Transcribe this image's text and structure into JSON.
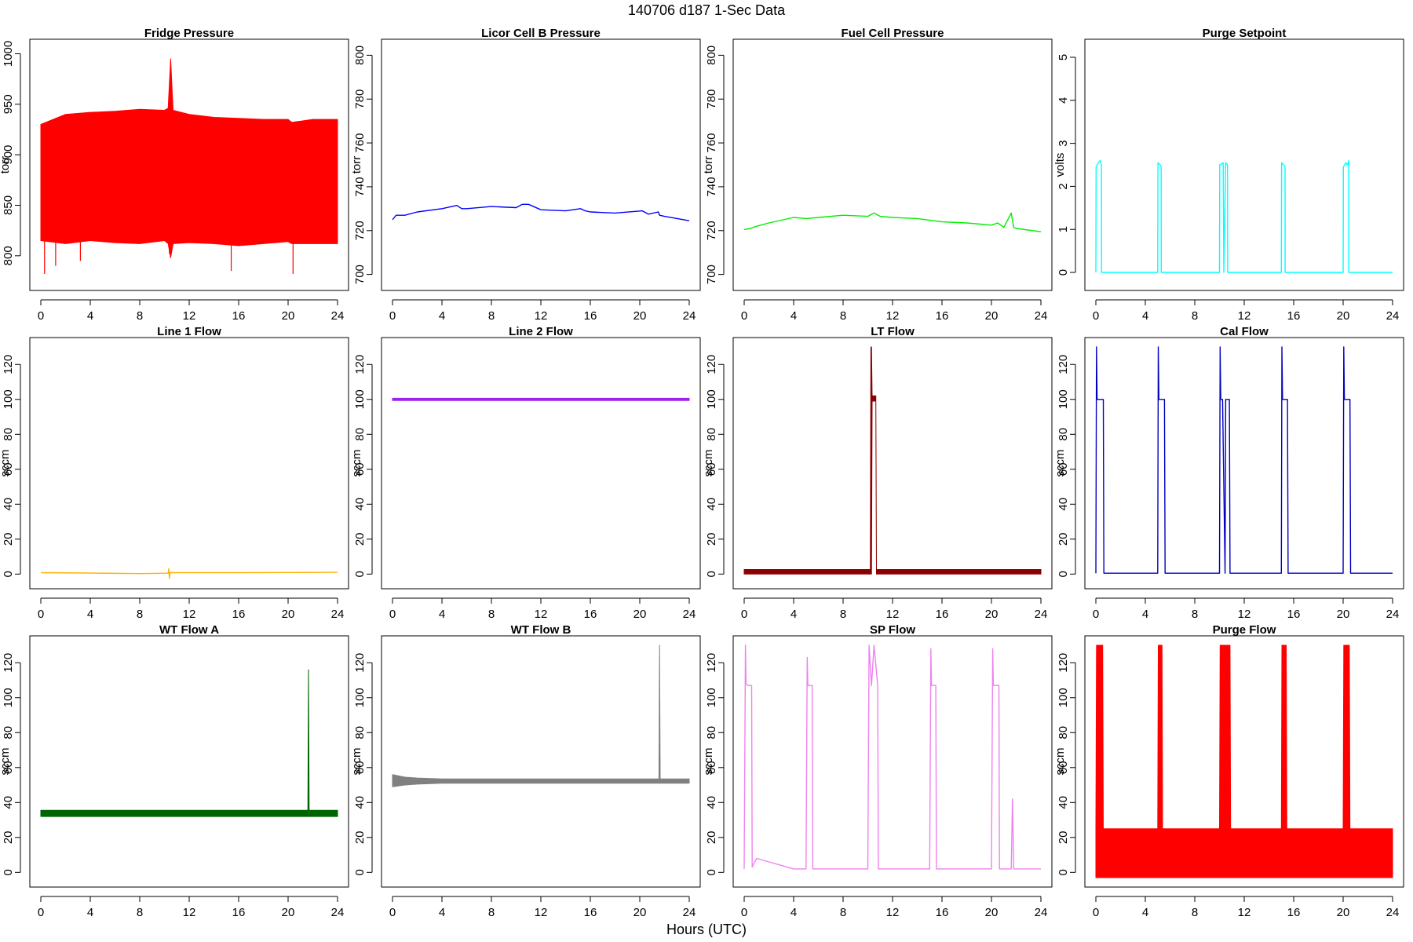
{
  "figure": {
    "title": "140706   d187   1-Sec Data",
    "xlabel": "Hours (UTC)"
  },
  "chart_data": [
    {
      "type": "line",
      "title": "Fridge Pressure",
      "ylabel": "torr",
      "color": "#ff0000",
      "xlim": [
        0,
        24
      ],
      "ylim": [
        775,
        1005
      ],
      "yticks": [
        800,
        850,
        900,
        950,
        1000
      ],
      "xticks": [
        0,
        4,
        8,
        12,
        16,
        20,
        24
      ],
      "x": [
        0,
        2,
        4,
        6,
        8,
        10,
        10.3,
        10.5,
        10.7,
        12,
        14,
        16,
        18,
        20,
        20.3,
        22,
        24
      ],
      "lower": [
        815,
        812,
        815,
        813,
        812,
        815,
        812,
        798,
        812,
        813,
        812,
        810,
        812,
        814,
        812,
        812,
        812
      ],
      "upper": [
        930,
        940,
        942,
        943,
        945,
        944,
        946,
        995,
        944,
        940,
        937,
        936,
        935,
        935,
        932,
        935,
        935
      ],
      "spikes_low": [
        [
          0.3,
          782
        ],
        [
          1.2,
          790
        ],
        [
          3.2,
          795
        ],
        [
          10.4,
          802
        ],
        [
          15.4,
          785
        ],
        [
          20.4,
          782
        ]
      ]
    },
    {
      "type": "line",
      "title": "Licor Cell B Pressure",
      "ylabel": "torr",
      "color": "#0000ff",
      "xlim": [
        0,
        24
      ],
      "ylim": [
        697,
        803
      ],
      "yticks": [
        700,
        720,
        740,
        760,
        780,
        800
      ],
      "xticks": [
        0,
        4,
        8,
        12,
        16,
        20,
        24
      ],
      "x": [
        0,
        0.3,
        1,
        2,
        4,
        5.2,
        5.6,
        6,
        8,
        10,
        10.5,
        11,
        12,
        14,
        15.2,
        15.6,
        16,
        18,
        20.2,
        20.7,
        21.5,
        21.6,
        22,
        24
      ],
      "values": [
        725,
        727,
        727,
        728.5,
        730,
        731.5,
        730,
        730,
        731,
        730.5,
        732,
        732,
        729.5,
        729,
        730,
        729,
        728.5,
        728,
        729,
        727.5,
        728.5,
        727,
        726.5,
        724.5
      ]
    },
    {
      "type": "line",
      "title": "Fuel Cell Pressure",
      "ylabel": "torr",
      "color": "#00ee00",
      "xlim": [
        0,
        24
      ],
      "ylim": [
        697,
        803
      ],
      "yticks": [
        700,
        720,
        740,
        760,
        780,
        800
      ],
      "xticks": [
        0,
        4,
        8,
        12,
        16,
        20,
        24
      ],
      "x": [
        0,
        0.5,
        1,
        2,
        4,
        5,
        6,
        8,
        10,
        10.5,
        11,
        12,
        14,
        16,
        18,
        20,
        20.5,
        21,
        21.6,
        21.8,
        22,
        24
      ],
      "values": [
        720.5,
        721,
        722,
        723.5,
        726,
        725.5,
        726,
        727,
        726.5,
        728,
        726.5,
        726,
        725.5,
        724,
        723.5,
        722.5,
        723.5,
        721.5,
        728,
        721.5,
        721,
        719.5
      ]
    },
    {
      "type": "line",
      "title": "Purge Setpoint",
      "ylabel": "volts",
      "color": "#00ffff",
      "xlim": [
        0,
        24
      ],
      "ylim": [
        -0.2,
        5.2
      ],
      "yticks": [
        0,
        1,
        2,
        3,
        4,
        5
      ],
      "xticks": [
        0,
        4,
        8,
        12,
        16,
        20,
        24
      ],
      "x": [
        0,
        0.02,
        0.1,
        0.2,
        0.35,
        0.45,
        0.46,
        5.0,
        5.02,
        5.2,
        5.28,
        5.29,
        10.0,
        10.02,
        10.3,
        10.35,
        10.5,
        10.65,
        10.66,
        15.0,
        15.02,
        15.2,
        15.3,
        15.31,
        20.0,
        20.02,
        20.2,
        20.35,
        20.45,
        20.46,
        24
      ],
      "values": [
        0,
        2.45,
        2.5,
        2.55,
        2.6,
        2.5,
        0,
        0,
        2.55,
        2.5,
        2.45,
        0,
        0,
        2.5,
        2.55,
        0,
        2.55,
        2.5,
        0,
        0,
        2.55,
        2.5,
        2.45,
        0,
        0,
        2.45,
        2.55,
        2.5,
        2.6,
        0,
        0
      ]
    },
    {
      "type": "line",
      "title": "Line 1 Flow",
      "ylabel": "sccm",
      "color": "#ffb200",
      "xlim": [
        0,
        24
      ],
      "ylim": [
        -3,
        130
      ],
      "yticks": [
        0,
        20,
        40,
        60,
        80,
        100,
        120
      ],
      "xticks": [
        0,
        4,
        8,
        12,
        16,
        20,
        24
      ],
      "x": [
        0,
        4,
        8,
        10.3,
        10.35,
        10.4,
        10.45,
        12,
        16,
        20,
        24
      ],
      "values": [
        0.8,
        0.6,
        0.3,
        0.5,
        3,
        -2.5,
        0.8,
        0.8,
        0.8,
        0.9,
        1.0
      ]
    },
    {
      "type": "line",
      "title": "Line 2 Flow",
      "ylabel": "sccm",
      "color": "#a020f0",
      "xlim": [
        0,
        24
      ],
      "ylim": [
        -3,
        130
      ],
      "yticks": [
        0,
        20,
        40,
        60,
        80,
        100,
        120
      ],
      "xticks": [
        0,
        4,
        8,
        12,
        16,
        20,
        24
      ],
      "x": [
        0,
        24
      ],
      "lower": [
        99.3,
        99.3
      ],
      "upper": [
        100.6,
        100.6
      ]
    },
    {
      "type": "line",
      "title": "LT Flow",
      "ylabel": "sccm",
      "color": "#8b0000",
      "xlim": [
        0,
        24
      ],
      "ylim": [
        -3,
        130
      ],
      "yticks": [
        0,
        20,
        40,
        60,
        80,
        100,
        120
      ],
      "xticks": [
        0,
        4,
        8,
        12,
        16,
        20,
        24
      ],
      "x": [
        0,
        10.2,
        10.25,
        10.3,
        10.35,
        10.65,
        10.7,
        10.75,
        24
      ],
      "lower": [
        0,
        0,
        0,
        0,
        99,
        99,
        0,
        0,
        0
      ],
      "upper": [
        2.6,
        2.6,
        130,
        130,
        102,
        102,
        2.6,
        2.6,
        2.6
      ]
    },
    {
      "type": "line",
      "title": "Cal Flow",
      "ylabel": "sccm",
      "color": "#0000c0",
      "xlim": [
        0,
        24
      ],
      "ylim": [
        -3,
        130
      ],
      "yticks": [
        0,
        20,
        40,
        60,
        80,
        100,
        120
      ],
      "xticks": [
        0,
        4,
        8,
        12,
        16,
        20,
        24
      ],
      "x": [
        0,
        0.05,
        0.1,
        0.25,
        0.3,
        0.6,
        0.65,
        5.0,
        5.05,
        5.1,
        5.25,
        5.55,
        5.6,
        10.0,
        10.05,
        10.1,
        10.25,
        10.45,
        10.5,
        10.6,
        10.8,
        10.85,
        15.0,
        15.05,
        15.1,
        15.25,
        15.5,
        15.55,
        20.0,
        20.05,
        20.1,
        20.25,
        20.55,
        20.6,
        24
      ],
      "values": [
        0.5,
        130,
        100,
        100,
        100,
        100,
        0.5,
        0.5,
        130,
        100,
        100,
        100,
        0.5,
        0.5,
        130,
        100,
        100,
        0.5,
        100,
        100,
        100,
        0.5,
        0.5,
        130,
        100,
        100,
        100,
        0.5,
        0.5,
        130,
        100,
        100,
        100,
        0.5,
        0.5
      ]
    },
    {
      "type": "line",
      "title": "WT Flow A",
      "ylabel": "sccm",
      "color": "#006400",
      "xlim": [
        0,
        24
      ],
      "ylim": [
        -3,
        130
      ],
      "yticks": [
        0,
        20,
        40,
        60,
        80,
        100,
        120
      ],
      "xticks": [
        0,
        4,
        8,
        12,
        16,
        20,
        24
      ],
      "x": [
        0,
        21.6,
        21.65,
        21.7,
        24
      ],
      "lower": [
        32,
        32,
        32,
        32,
        32
      ],
      "upper": [
        35.5,
        35.5,
        116,
        35.5,
        35.5
      ]
    },
    {
      "type": "line",
      "title": "WT Flow B",
      "ylabel": "sccm",
      "color": "#808080",
      "xlim": [
        0,
        24
      ],
      "ylim": [
        -3,
        130
      ],
      "yticks": [
        0,
        20,
        40,
        60,
        80,
        100,
        120
      ],
      "xticks": [
        0,
        4,
        8,
        12,
        16,
        20,
        24
      ],
      "x": [
        0,
        1,
        2,
        4,
        8,
        12,
        16,
        20,
        21.55,
        21.6,
        21.65,
        24
      ],
      "lower": [
        49,
        50,
        50.5,
        51,
        51,
        51,
        51,
        51,
        51,
        51,
        51,
        51
      ],
      "upper": [
        56,
        54.5,
        54,
        53.5,
        53.5,
        53.5,
        53.5,
        53.5,
        53.5,
        130,
        53.5,
        53.5
      ]
    },
    {
      "type": "line",
      "title": "SP Flow",
      "ylabel": "sccm",
      "color": "#ee82ee",
      "xlim": [
        0,
        24
      ],
      "ylim": [
        -3,
        130
      ],
      "yticks": [
        0,
        20,
        40,
        60,
        80,
        100,
        120
      ],
      "xticks": [
        0,
        4,
        8,
        12,
        16,
        20,
        24
      ],
      "x": [
        0,
        0.1,
        0.15,
        0.3,
        0.6,
        0.65,
        1,
        2,
        3,
        4,
        5.0,
        5.1,
        5.15,
        5.5,
        5.55,
        8,
        10.0,
        10.1,
        10.3,
        10.5,
        10.8,
        10.85,
        12,
        15.0,
        15.1,
        15.15,
        15.5,
        15.55,
        18,
        20.0,
        20.1,
        20.15,
        20.6,
        20.65,
        21.6,
        21.7,
        21.8,
        24
      ],
      "values": [
        2,
        130,
        108,
        107,
        107,
        3,
        8,
        6,
        4,
        2,
        2,
        123,
        107,
        107,
        2,
        2,
        2,
        130,
        107,
        130,
        107,
        2,
        2,
        2,
        128,
        107,
        107,
        2,
        2,
        2,
        128,
        107,
        107,
        2,
        2,
        42,
        2,
        2
      ]
    },
    {
      "type": "line",
      "title": "Purge Flow",
      "ylabel": "sccm",
      "color": "#ff0000",
      "xlim": [
        0,
        24
      ],
      "ylim": [
        -3,
        130
      ],
      "yticks": [
        0,
        20,
        40,
        60,
        80,
        100,
        120
      ],
      "xticks": [
        0,
        4,
        8,
        12,
        16,
        20,
        24
      ],
      "x": [
        0,
        0.05,
        0.1,
        0.55,
        0.6,
        5.0,
        5.05,
        5.35,
        5.4,
        10.0,
        10.05,
        10.85,
        10.9,
        15.0,
        15.05,
        15.4,
        15.45,
        20.0,
        20.05,
        20.5,
        20.55,
        24
      ],
      "lower": [
        -3,
        -3,
        -3,
        -3,
        -3,
        -3,
        -3,
        -3,
        -3,
        -3,
        -3,
        -3,
        -3,
        -3,
        -3,
        -3,
        -3,
        -3,
        -3,
        -3,
        -3,
        -3
      ],
      "upper": [
        25,
        130,
        130,
        130,
        25,
        25,
        130,
        130,
        25,
        25,
        130,
        130,
        25,
        25,
        130,
        130,
        25,
        25,
        130,
        130,
        25,
        25
      ]
    }
  ]
}
